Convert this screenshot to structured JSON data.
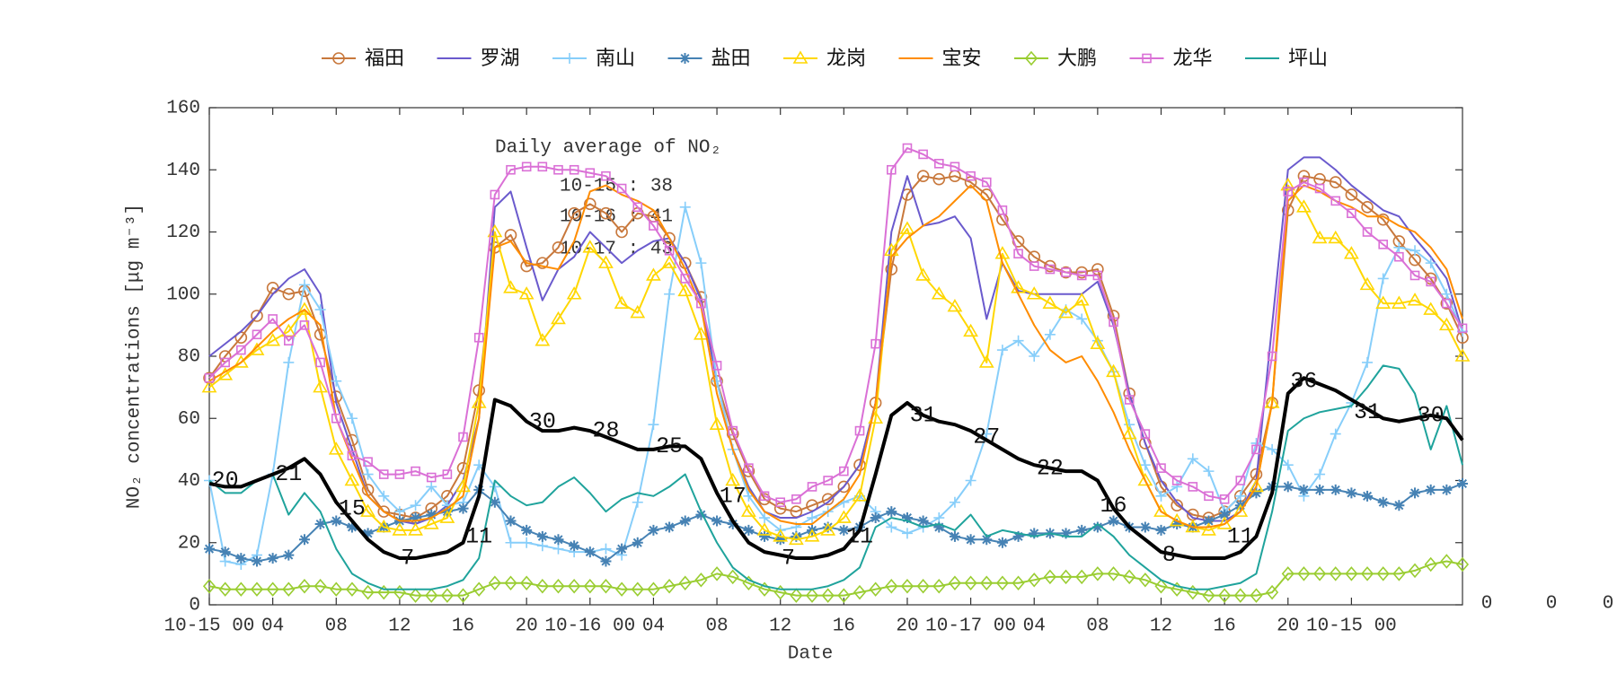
{
  "chart_data": {
    "type": "line",
    "ylabel": "NO₂ concentrations [μg m⁻³]",
    "xlabel": "Date",
    "xlim": [
      0,
      79
    ],
    "ylim": [
      0,
      160
    ],
    "yticks": [
      0,
      20,
      40,
      60,
      80,
      100,
      120,
      140,
      160
    ],
    "xticks": [
      {
        "value": 0,
        "label": "10-15 00"
      },
      {
        "value": 4,
        "label": "04"
      },
      {
        "value": 8,
        "label": "08"
      },
      {
        "value": 12,
        "label": "12"
      },
      {
        "value": 16,
        "label": "16"
      },
      {
        "value": 20,
        "label": "20"
      },
      {
        "value": 24,
        "label": "10-16 00"
      },
      {
        "value": 28,
        "label": "04"
      },
      {
        "value": 32,
        "label": "08"
      },
      {
        "value": 36,
        "label": "12"
      },
      {
        "value": 40,
        "label": "16"
      },
      {
        "value": 44,
        "label": "20"
      },
      {
        "value": 48,
        "label": "10-17 00"
      },
      {
        "value": 52,
        "label": "04"
      },
      {
        "value": 56,
        "label": "08"
      },
      {
        "value": 60,
        "label": "12"
      },
      {
        "value": 64,
        "label": "16"
      },
      {
        "value": 68,
        "label": "20"
      },
      {
        "value": 72,
        "label": "10-15 00"
      }
    ],
    "extra_labels": [
      "0",
      "0",
      "0"
    ],
    "inset": {
      "title": "Daily average of NO₂",
      "lines": [
        "10-15 : 38",
        "10-16 : 41",
        "10-17 : 43"
      ]
    },
    "x": [
      0,
      1,
      2,
      3,
      4,
      5,
      6,
      7,
      8,
      9,
      10,
      11,
      12,
      13,
      14,
      15,
      16,
      17,
      18,
      19,
      20,
      21,
      22,
      23,
      24,
      25,
      26,
      27,
      28,
      29,
      30,
      31,
      32,
      33,
      34,
      35,
      36,
      37,
      38,
      39,
      40,
      41,
      42,
      43,
      44,
      45,
      46,
      47,
      48,
      49,
      50,
      51,
      52,
      53,
      54,
      55,
      56,
      57,
      58,
      59,
      60,
      61,
      62,
      63,
      64,
      65,
      66,
      67,
      68,
      69,
      70,
      71,
      72,
      73,
      74,
      75,
      76,
      77,
      78,
      79
    ],
    "series": [
      {
        "name": "福田",
        "color": "#c8783c",
        "marker": "circle",
        "values": [
          73,
          80,
          86,
          93,
          102,
          100,
          101,
          87,
          67,
          53,
          37,
          30,
          29,
          28,
          31,
          35,
          44,
          69,
          115,
          119,
          109,
          110,
          115,
          126,
          129,
          126,
          120,
          126,
          125,
          118,
          110,
          99,
          72,
          55,
          43,
          34,
          31,
          30,
          32,
          34,
          38,
          45,
          65,
          108,
          132,
          138,
          137,
          138,
          136,
          132,
          124,
          117,
          112,
          109,
          107,
          107,
          108,
          93,
          68,
          52,
          38,
          32,
          29,
          28,
          30,
          35,
          42,
          65,
          127,
          138,
          137,
          136,
          132,
          128,
          124,
          117,
          111,
          105,
          97,
          86
        ]
      },
      {
        "name": "罗湖",
        "color": "#6a5acd",
        "marker": "none",
        "values": [
          80,
          84,
          88,
          93,
          100,
          105,
          108,
          100,
          65,
          50,
          35,
          30,
          27,
          26,
          28,
          32,
          40,
          60,
          128,
          133,
          115,
          98,
          108,
          112,
          120,
          115,
          110,
          114,
          117,
          118,
          110,
          98,
          72,
          50,
          38,
          30,
          28,
          28,
          30,
          33,
          38,
          45,
          65,
          120,
          138,
          122,
          123,
          125,
          118,
          92,
          110,
          101,
          100,
          100,
          100,
          100,
          104,
          90,
          68,
          52,
          40,
          33,
          28,
          27,
          27,
          30,
          40,
          90,
          140,
          144,
          144,
          140,
          135,
          131,
          127,
          125,
          118,
          112,
          105,
          88
        ]
      },
      {
        "name": "南山",
        "color": "#87cefa",
        "marker": "plus",
        "values": [
          40,
          14,
          13,
          16,
          42,
          78,
          103,
          95,
          72,
          60,
          42,
          35,
          30,
          32,
          38,
          32,
          33,
          45,
          38,
          20,
          20,
          19,
          18,
          17,
          17,
          18,
          16,
          33,
          58,
          100,
          128,
          110,
          72,
          50,
          35,
          28,
          24,
          25,
          28,
          30,
          33,
          35,
          30,
          25,
          23,
          25,
          28,
          33,
          40,
          55,
          82,
          85,
          80,
          87,
          95,
          92,
          85,
          75,
          58,
          45,
          35,
          38,
          47,
          43,
          30,
          35,
          52,
          50,
          45,
          35,
          42,
          55,
          65,
          78,
          105,
          115,
          114,
          110,
          100,
          88
        ]
      },
      {
        "name": "盐田",
        "color": "#4682b4",
        "marker": "asterisk",
        "values": [
          18,
          17,
          15,
          14,
          15,
          16,
          21,
          26,
          27,
          25,
          23,
          25,
          27,
          28,
          29,
          30,
          31,
          37,
          33,
          27,
          24,
          22,
          21,
          19,
          17,
          14,
          18,
          20,
          24,
          25,
          27,
          29,
          27,
          26,
          24,
          22,
          21,
          22,
          24,
          25,
          24,
          25,
          28,
          30,
          28,
          27,
          25,
          22,
          21,
          21,
          20,
          22,
          23,
          23,
          23,
          24,
          25,
          27,
          25,
          25,
          24,
          26,
          25,
          27,
          29,
          32,
          36,
          38,
          38,
          37,
          37,
          37,
          36,
          35,
          33,
          32,
          36,
          37,
          37,
          39
        ]
      },
      {
        "name": "龙岗",
        "color": "#ffd700",
        "marker": "triangle",
        "values": [
          70,
          74,
          78,
          82,
          85,
          88,
          95,
          70,
          50,
          40,
          30,
          25,
          24,
          24,
          26,
          28,
          38,
          65,
          120,
          102,
          100,
          85,
          92,
          100,
          115,
          110,
          97,
          94,
          106,
          110,
          101,
          87,
          58,
          40,
          30,
          24,
          22,
          21,
          22,
          24,
          28,
          35,
          60,
          114,
          121,
          106,
          100,
          96,
          88,
          78,
          113,
          102,
          100,
          97,
          94,
          98,
          84,
          75,
          55,
          40,
          30,
          27,
          25,
          24,
          26,
          30,
          38,
          65,
          135,
          128,
          118,
          118,
          113,
          103,
          97,
          97,
          98,
          95,
          90,
          80
        ]
      },
      {
        "name": "宝安",
        "color": "#ff8c00",
        "marker": "none",
        "values": [
          72,
          75,
          78,
          83,
          88,
          92,
          95,
          90,
          60,
          47,
          35,
          30,
          27,
          27,
          28,
          31,
          35,
          60,
          115,
          117,
          110,
          109,
          108,
          117,
          133,
          135,
          132,
          130,
          127,
          118,
          108,
          96,
          68,
          50,
          37,
          30,
          27,
          26,
          26,
          30,
          34,
          42,
          65,
          112,
          118,
          122,
          125,
          130,
          135,
          130,
          110,
          100,
          90,
          82,
          78,
          80,
          72,
          62,
          50,
          40,
          30,
          27,
          25,
          25,
          26,
          30,
          38,
          65,
          130,
          135,
          133,
          130,
          128,
          125,
          125,
          122,
          120,
          115,
          108,
          92
        ]
      },
      {
        "name": "大鹏",
        "color": "#9acd32",
        "marker": "diamond",
        "values": [
          6,
          5,
          5,
          5,
          5,
          5,
          6,
          6,
          5,
          5,
          4,
          4,
          4,
          3,
          3,
          3,
          3,
          5,
          7,
          7,
          7,
          6,
          6,
          6,
          6,
          6,
          5,
          5,
          5,
          6,
          7,
          8,
          10,
          9,
          7,
          5,
          4,
          3,
          3,
          3,
          3,
          4,
          5,
          6,
          6,
          6,
          6,
          7,
          7,
          7,
          7,
          7,
          8,
          9,
          9,
          9,
          10,
          10,
          9,
          8,
          6,
          5,
          4,
          3,
          3,
          3,
          3,
          4,
          10,
          10,
          10,
          10,
          10,
          10,
          10,
          10,
          11,
          13,
          14,
          13
        ]
      },
      {
        "name": "龙华",
        "color": "#da70d6",
        "marker": "square",
        "values": [
          73,
          78,
          82,
          87,
          92,
          85,
          90,
          78,
          60,
          48,
          46,
          42,
          42,
          43,
          41,
          42,
          54,
          86,
          132,
          140,
          141,
          141,
          140,
          140,
          139,
          138,
          134,
          128,
          122,
          114,
          105,
          97,
          77,
          56,
          44,
          35,
          33,
          34,
          38,
          40,
          43,
          56,
          84,
          140,
          147,
          145,
          142,
          141,
          138,
          136,
          127,
          113,
          109,
          108,
          107,
          106,
          106,
          91,
          66,
          55,
          44,
          40,
          38,
          35,
          34,
          40,
          50,
          80,
          133,
          136,
          134,
          130,
          126,
          120,
          116,
          112,
          106,
          104,
          97,
          89
        ]
      },
      {
        "name": "坪山",
        "color": "#1fa39c",
        "marker": "none",
        "values": [
          40,
          36,
          36,
          40,
          42,
          29,
          36,
          30,
          18,
          10,
          7,
          5,
          5,
          5,
          5,
          6,
          8,
          15,
          40,
          35,
          32,
          33,
          38,
          41,
          36,
          30,
          34,
          36,
          35,
          38,
          42,
          30,
          20,
          12,
          8,
          6,
          5,
          5,
          5,
          6,
          8,
          12,
          25,
          28,
          27,
          25,
          26,
          24,
          29,
          22,
          24,
          23,
          22,
          23,
          22,
          22,
          26,
          22,
          16,
          12,
          8,
          6,
          5,
          5,
          6,
          7,
          10,
          30,
          56,
          60,
          62,
          63,
          64,
          70,
          77,
          76,
          68,
          50,
          64,
          45
        ]
      }
    ],
    "average": {
      "color": "#000000",
      "values": [
        39,
        38,
        38,
        40,
        42,
        44,
        47,
        42,
        33,
        27,
        21,
        17,
        15,
        15,
        16,
        17,
        20,
        35,
        66,
        64,
        59,
        56,
        56,
        57,
        56,
        54,
        52,
        50,
        50,
        51,
        51,
        47,
        36,
        27,
        20,
        17,
        16,
        15,
        15,
        16,
        18,
        24,
        42,
        61,
        65,
        61,
        59,
        58,
        56,
        53,
        50,
        47,
        45,
        44,
        43,
        43,
        40,
        31,
        25,
        21,
        17,
        16,
        15,
        15,
        15,
        17,
        22,
        36,
        68,
        73,
        71,
        69,
        66,
        63,
        60,
        59,
        60,
        61,
        60,
        53
      ]
    },
    "annotations": [
      {
        "text": "20",
        "x": 1,
        "y": 40
      },
      {
        "text": "21",
        "x": 5,
        "y": 42
      },
      {
        "text": "15",
        "x": 9,
        "y": 31
      },
      {
        "text": "7",
        "x": 12.5,
        "y": 15
      },
      {
        "text": "11",
        "x": 17,
        "y": 22
      },
      {
        "text": "30",
        "x": 21,
        "y": 59
      },
      {
        "text": "28",
        "x": 25,
        "y": 56
      },
      {
        "text": "25",
        "x": 29,
        "y": 51
      },
      {
        "text": "17",
        "x": 33,
        "y": 35
      },
      {
        "text": "7",
        "x": 36.5,
        "y": 15
      },
      {
        "text": "11",
        "x": 41,
        "y": 22
      },
      {
        "text": "31",
        "x": 45,
        "y": 61
      },
      {
        "text": "27",
        "x": 49,
        "y": 54
      },
      {
        "text": "22",
        "x": 53,
        "y": 44
      },
      {
        "text": "16",
        "x": 57,
        "y": 32
      },
      {
        "text": "8",
        "x": 60.5,
        "y": 16
      },
      {
        "text": "11",
        "x": 65,
        "y": 22
      },
      {
        "text": "36",
        "x": 69,
        "y": 72
      },
      {
        "text": "31",
        "x": 73,
        "y": 62
      },
      {
        "text": "30",
        "x": 77,
        "y": 61
      }
    ]
  }
}
